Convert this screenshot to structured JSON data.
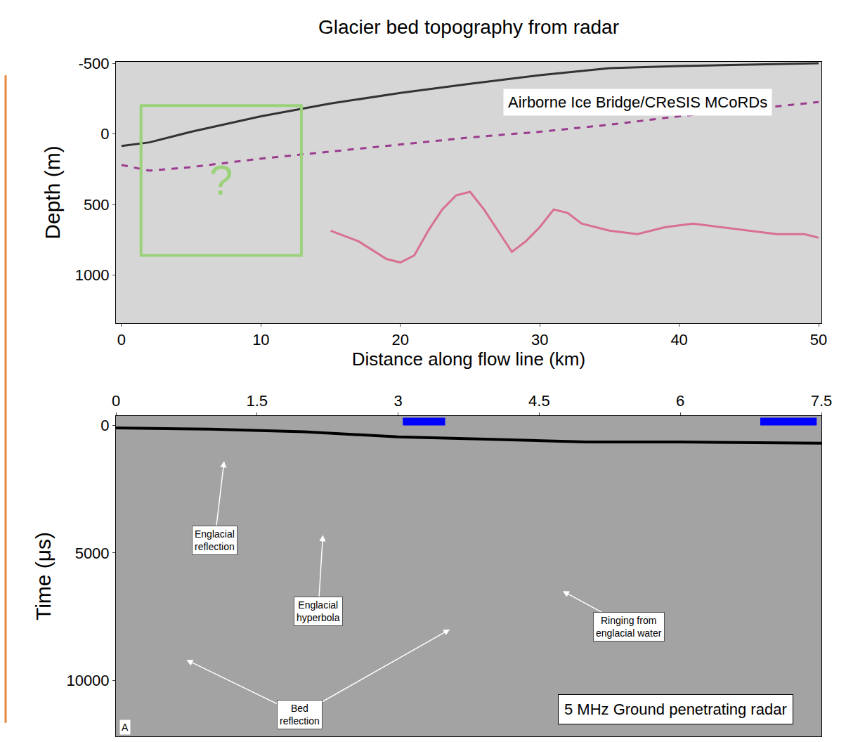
{
  "chart_data": [
    {
      "type": "line",
      "title": "Glacier bed topography from radar",
      "x_label": "Distance along flow line (km)",
      "y_label": "Depth (m)",
      "xlim": [
        -0.4,
        50.2
      ],
      "ylim": [
        1340,
        -510
      ],
      "xticks": [
        0,
        10,
        20,
        30,
        40,
        50
      ],
      "yticks": [
        -500,
        0,
        500,
        1000
      ],
      "grid": false,
      "series": [
        {
          "color": "#333333",
          "line_style": "solid",
          "x": [
            0,
            2,
            5,
            10,
            15,
            20,
            25,
            30,
            35,
            40,
            45,
            50
          ],
          "values": [
            85,
            60,
            -15,
            -125,
            -215,
            -290,
            -355,
            -415,
            -465,
            -480,
            -490,
            -500
          ]
        },
        {
          "color": "#9b3b8f",
          "line_style": "dash",
          "x": [
            0,
            2,
            5,
            10,
            15,
            20,
            25,
            30,
            35,
            40,
            45,
            50
          ],
          "values": [
            220,
            260,
            235,
            175,
            125,
            75,
            25,
            -15,
            -65,
            -125,
            -175,
            -225
          ]
        },
        {
          "color": "#d8708f",
          "line_style": "solid",
          "x": [
            15,
            17,
            19,
            20,
            21,
            22,
            23,
            24,
            25,
            26,
            27,
            28,
            29,
            30,
            31,
            32,
            33,
            35,
            37,
            39,
            41,
            43,
            45,
            47,
            49,
            50
          ],
          "values": [
            685,
            760,
            885,
            910,
            860,
            685,
            535,
            435,
            410,
            535,
            685,
            835,
            760,
            660,
            535,
            560,
            635,
            685,
            710,
            660,
            635,
            660,
            685,
            710,
            710,
            735
          ]
        }
      ],
      "box": {
        "text": "?",
        "color": "#9bd17a",
        "x": [
          1.4,
          12.9
        ],
        "y": [
          -200,
          860
        ]
      },
      "annotations": [
        {
          "text": "Airborne Ice Bridge/CReSIS MCoRDs",
          "x": 37,
          "y": -225
        }
      ]
    },
    {
      "type": "line",
      "y_label": "Time (μs)",
      "xlim": [
        0,
        7.5
      ],
      "ylim": [
        12200,
        -370
      ],
      "xticks": [
        0,
        1.5,
        3,
        4.5,
        6,
        7.5
      ],
      "yticks": [
        0,
        5000,
        10000
      ],
      "grid": false,
      "series": [
        {
          "color": "#000000",
          "line_style": "solid",
          "x": [
            0,
            1,
            2,
            3,
            4,
            5,
            6,
            7,
            7.5
          ],
          "values": [
            100,
            150,
            250,
            450,
            550,
            650,
            650,
            700,
            700
          ]
        }
      ],
      "segments": {
        "color": "#0000ff",
        "x": [
          [
            3.05,
            3.5
          ],
          [
            6.85,
            7.45
          ]
        ],
        "y": [
          -300,
          0
        ]
      },
      "annotations": [
        {
          "text": "Englacial\nreflection",
          "x": 1.05,
          "y": 4500,
          "arrows": [
            {
              "x": 1.15,
              "y": 1400
            }
          ]
        },
        {
          "text": "Englacial\nhyperbola",
          "x": 2.15,
          "y": 7300,
          "arrows": [
            {
              "x": 2.2,
              "y": 4300
            }
          ]
        },
        {
          "text": "Ringing from\nenglacial water",
          "x": 5.45,
          "y": 7900,
          "arrows": [
            {
              "x": 4.75,
              "y": 6500
            }
          ]
        },
        {
          "text": "Bed\nreflection",
          "x": 1.95,
          "y": 11350,
          "arrows": [
            {
              "x": 0.75,
              "y": 9200
            },
            {
              "x": 3.55,
              "y": 8000
            }
          ]
        }
      ],
      "caption": "5 MHz Ground penetrating radar",
      "caption_at": {
        "x": 5.95,
        "y": 11150
      },
      "panel_label": "A"
    }
  ]
}
